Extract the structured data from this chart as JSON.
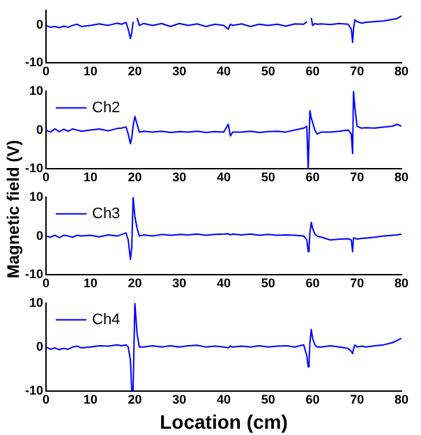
{
  "chart_data": [
    {
      "type": "line",
      "xlim": [
        0,
        80
      ],
      "xticks": [
        0,
        10,
        20,
        30,
        40,
        50,
        60,
        70,
        80
      ],
      "ylim": [
        -10,
        4
      ],
      "yticks": [
        -10,
        0
      ],
      "marker": "none",
      "grid": false,
      "legend": false,
      "series": [
        {
          "color": "#0000ff",
          "x": [
            0,
            1,
            2,
            3,
            4,
            5,
            6,
            7,
            8,
            10,
            12,
            14,
            16,
            17,
            18,
            18.5,
            19,
            19.3,
            19.6,
            20,
            20.5,
            21,
            22,
            24,
            26,
            28,
            30,
            32,
            34,
            36,
            38,
            40,
            41,
            41.5,
            42,
            44,
            46,
            48,
            50,
            52,
            54,
            56,
            58,
            58.7,
            59,
            59.2,
            59.4,
            59.7,
            60,
            60.5,
            61,
            62,
            64,
            66,
            68,
            68.7,
            69,
            69.2,
            69.5,
            70,
            71,
            72,
            74,
            76,
            78,
            79,
            80
          ],
          "values": [
            0,
            -0.5,
            -0.3,
            -0.6,
            -0.2,
            -0.5,
            0,
            0.3,
            -0.3,
            0,
            0.4,
            0,
            0.6,
            0.3,
            0.8,
            -1,
            -3.5,
            -2,
            1,
            null,
            2,
            0,
            0.5,
            0,
            0.5,
            -0.3,
            0.5,
            0,
            0.4,
            -0.3,
            0.3,
            0,
            -1,
            0.3,
            0,
            0.4,
            -0.3,
            0.3,
            0,
            0.3,
            -0.2,
            0.4,
            0.3,
            1,
            null,
            null,
            null,
            2,
            0,
            0.5,
            0.3,
            0.4,
            0.2,
            0.5,
            0.3,
            -1,
            -4.5,
            -1,
            1.5,
            1,
            0.6,
            0.8,
            1,
            1.2,
            1.6,
            1.8,
            2.5
          ]
        }
      ]
    },
    {
      "type": "line",
      "ylabel": "Magnetic field (V)",
      "xlim": [
        0,
        80
      ],
      "xticks": [
        0,
        10,
        20,
        30,
        40,
        50,
        60,
        70,
        80
      ],
      "ylim": [
        -10,
        10
      ],
      "yticks": [
        -10,
        0,
        10
      ],
      "marker": "none",
      "grid": false,
      "legend": "top left",
      "series": [
        {
          "name": "Ch2",
          "color": "#0000ff",
          "x": [
            0,
            1,
            2,
            3,
            4,
            5,
            6,
            7,
            8,
            10,
            12,
            14,
            16,
            17,
            18,
            18.5,
            19,
            19.3,
            19.6,
            20,
            20.5,
            21,
            22,
            24,
            26,
            28,
            30,
            32,
            34,
            36,
            38,
            40,
            41,
            41.5,
            42,
            44,
            46,
            48,
            50,
            52,
            54,
            56,
            58,
            58.7,
            59,
            59.2,
            59.4,
            59.7,
            60,
            60.5,
            61,
            62,
            64,
            66,
            68,
            68.7,
            69,
            69.2,
            69.5,
            70,
            71,
            72,
            74,
            76,
            78,
            79,
            80
          ],
          "values": [
            0,
            -0.5,
            0.3,
            -0.4,
            0.2,
            -0.3,
            0.3,
            0,
            -0.3,
            0,
            0.3,
            -0.2,
            0.4,
            0.5,
            0.8,
            -1,
            -3.5,
            -2,
            1,
            3.5,
            1.5,
            -0.5,
            -0.3,
            -0.5,
            -0.3,
            -0.6,
            -0.4,
            -0.5,
            -0.3,
            -0.6,
            -0.4,
            -0.5,
            1.5,
            -1.5,
            -0.5,
            -0.5,
            -0.3,
            -0.6,
            -0.4,
            -0.3,
            -0.5,
            0,
            0.5,
            1,
            -10,
            -10,
            5,
            3,
            2,
            0,
            -1,
            -0.5,
            -0.5,
            -0.3,
            0,
            -1,
            -6,
            10,
            6,
            1,
            0.5,
            0.6,
            0.5,
            0.8,
            1,
            1.5,
            1
          ]
        }
      ]
    },
    {
      "type": "line",
      "xlim": [
        0,
        80
      ],
      "xticks": [
        0,
        10,
        20,
        30,
        40,
        50,
        60,
        70,
        80
      ],
      "ylim": [
        -10,
        10
      ],
      "yticks": [
        -10,
        0,
        10
      ],
      "marker": "none",
      "grid": false,
      "legend": "top left",
      "series": [
        {
          "name": "Ch3",
          "color": "#0000ff",
          "x": [
            0,
            1,
            2,
            3,
            4,
            5,
            6,
            7,
            8,
            10,
            12,
            14,
            16,
            17,
            18,
            18.5,
            19,
            19.3,
            19.6,
            20,
            20.5,
            21,
            22,
            24,
            26,
            28,
            30,
            32,
            34,
            36,
            38,
            40,
            41,
            41.5,
            42,
            44,
            46,
            48,
            50,
            52,
            54,
            56,
            58,
            58.7,
            59,
            59.2,
            59.4,
            59.7,
            60,
            60.5,
            61,
            62,
            64,
            66,
            68,
            68.7,
            69,
            69.2,
            69.5,
            70,
            71,
            72,
            74,
            76,
            78,
            79,
            80
          ],
          "values": [
            0,
            -0.3,
            0.2,
            -0.4,
            0.2,
            0,
            -0.3,
            0.2,
            0,
            0.2,
            -0.2,
            0.3,
            0,
            0.4,
            0.8,
            -1,
            -6,
            -3,
            10,
            5,
            2,
            0,
            0.3,
            0,
            0.4,
            0.2,
            0.4,
            0.3,
            0.5,
            0.2,
            0.4,
            0.5,
            0.6,
            0.3,
            0.5,
            0.3,
            0.5,
            0.2,
            0.4,
            0.2,
            0.3,
            0.2,
            0,
            -1,
            -4,
            -3,
            1,
            3.5,
            2,
            0.5,
            0,
            -0.3,
            -1,
            -0.8,
            -0.7,
            -1,
            -4,
            -0.5,
            -0.5,
            -0.8,
            -0.6,
            -0.5,
            -0.3,
            0,
            0.2,
            0.3,
            0.5
          ]
        }
      ]
    },
    {
      "type": "line",
      "xlabel": "Location (cm)",
      "xlim": [
        0,
        80
      ],
      "xticks": [
        0,
        10,
        20,
        30,
        40,
        50,
        60,
        70,
        80
      ],
      "ylim": [
        -10,
        10
      ],
      "yticks": [
        -10,
        0,
        10
      ],
      "marker": "none",
      "grid": false,
      "legend": "top left",
      "series": [
        {
          "name": "Ch4",
          "color": "#0000ff",
          "x": [
            0,
            1,
            2,
            3,
            4,
            5,
            6,
            7,
            8,
            10,
            12,
            14,
            16,
            17,
            18,
            18.5,
            19,
            19.3,
            19.6,
            20,
            20.5,
            21,
            22,
            24,
            26,
            28,
            30,
            32,
            34,
            36,
            38,
            40,
            41,
            41.5,
            42,
            44,
            46,
            48,
            50,
            52,
            54,
            56,
            58,
            58.7,
            59,
            59.2,
            59.4,
            59.7,
            60,
            60.5,
            61,
            62,
            64,
            66,
            68,
            68.7,
            69,
            69.2,
            69.5,
            70,
            71,
            72,
            74,
            76,
            78,
            79,
            80
          ],
          "values": [
            0,
            -0.5,
            -0.2,
            -0.6,
            -0.3,
            -0.5,
            0,
            0.2,
            -0.2,
            0,
            0.3,
            0.2,
            0.5,
            0.3,
            0.5,
            0,
            -3,
            -10,
            -10,
            10,
            3,
            0,
            0,
            0.3,
            0,
            0.3,
            0,
            0.3,
            0.4,
            0,
            0.2,
            0,
            -0.2,
            0.2,
            0,
            0.2,
            0,
            0.3,
            0,
            0.2,
            0.3,
            0,
            0.5,
            -2,
            -4.5,
            -3,
            1,
            4,
            2,
            0.5,
            0,
            0,
            0.3,
            0,
            -0.3,
            -1,
            -1.5,
            -0.5,
            0.5,
            0,
            0.2,
            0,
            0.3,
            0.5,
            1,
            1.5,
            2
          ]
        }
      ]
    }
  ]
}
